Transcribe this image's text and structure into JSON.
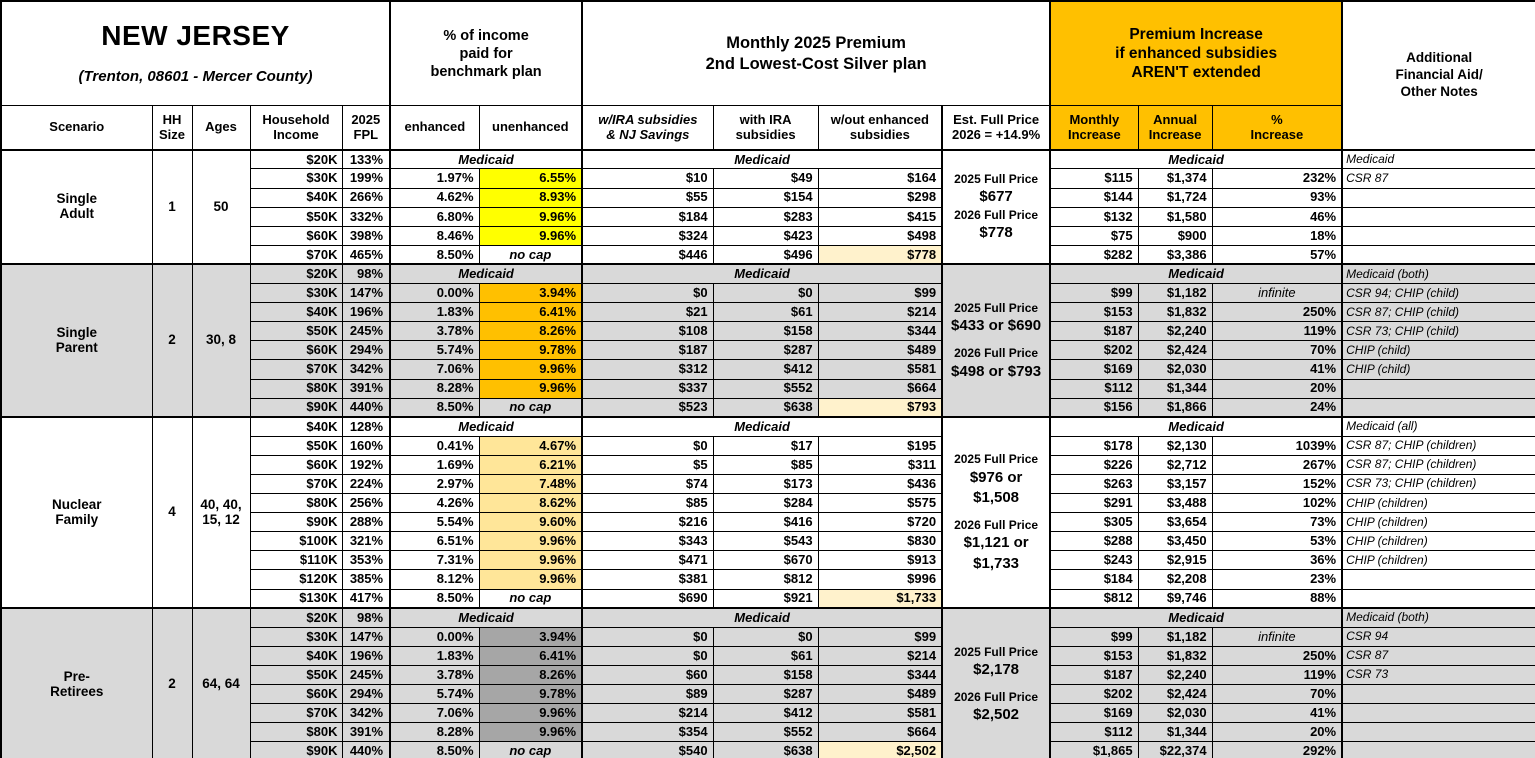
{
  "title": {
    "state": "NEW JERSEY",
    "subtitle": "(Trenton, 08601 - Mercer County)"
  },
  "colors": {
    "header_orange": "#FFC000",
    "band_gray": "#D9D9D9",
    "highlight_yellow": "#FFFF00",
    "highlight_orange": "#FFC000",
    "highlight_gold": "#FFE699",
    "highlight_gray": "#A6A6A6",
    "highlight_cream": "#FFF2CC",
    "border": "#000000"
  },
  "headers": {
    "income_group": "% of income\npaid for\nbenchmark plan",
    "premium_group": "Monthly 2025 Premium\n2nd Lowest-Cost Silver plan",
    "increase_group": "Premium Increase\nif enhanced subsidies\nAREN'T extended",
    "notes": "Additional\nFinancial Aid/\nOther Notes",
    "cols": {
      "scenario": "Scenario",
      "hh_size": "HH\nSize",
      "ages": "Ages",
      "income": "Household\nIncome",
      "fpl": "2025\nFPL",
      "enhanced": "enhanced",
      "unenhanced": "unenhanced",
      "w_ira_nj": "w/IRA subsidies\n& NJ Savings",
      "with_ira": "with IRA\nsubsidies",
      "wout": "w/out enhanced\nsubsidies",
      "full_price": "Est. Full Price\n2026 = +14.9%",
      "monthly": "Monthly\nIncrease",
      "annual": "Annual\nIncrease",
      "pct": "%\nIncrease"
    }
  },
  "chart_data": {
    "type": "table",
    "medicaid_label": "Medicaid",
    "sections": [
      {
        "scenario": "Single\nAdult",
        "hh": "1",
        "ages": "50",
        "band": "white",
        "unenhanced_hl": "#FFFF00",
        "full_price_lines": [
          "2025 Full Price",
          "$677",
          "2026 Full Price",
          "$778"
        ],
        "rows": [
          {
            "inc": "$20K",
            "fpl": "133%",
            "med": true,
            "note": "Medicaid"
          },
          {
            "inc": "$30K",
            "fpl": "199%",
            "enh": "1.97%",
            "une": "6.55%",
            "p1": "$10",
            "p2": "$49",
            "p3": "$164",
            "mo": "$115",
            "an": "$1,374",
            "pc": "232%",
            "note": "CSR 87"
          },
          {
            "inc": "$40K",
            "fpl": "266%",
            "enh": "4.62%",
            "une": "8.93%",
            "p1": "$55",
            "p2": "$154",
            "p3": "$298",
            "mo": "$144",
            "an": "$1,724",
            "pc": "93%",
            "note": ""
          },
          {
            "inc": "$50K",
            "fpl": "332%",
            "enh": "6.80%",
            "une": "9.96%",
            "p1": "$184",
            "p2": "$283",
            "p3": "$415",
            "mo": "$132",
            "an": "$1,580",
            "pc": "46%",
            "note": ""
          },
          {
            "inc": "$60K",
            "fpl": "398%",
            "enh": "8.46%",
            "une": "9.96%",
            "p1": "$324",
            "p2": "$423",
            "p3": "$498",
            "mo": "$75",
            "an": "$900",
            "pc": "18%",
            "note": ""
          },
          {
            "inc": "$70K",
            "fpl": "465%",
            "enh": "8.50%",
            "une": "no cap",
            "nocap": true,
            "p1": "$446",
            "p2": "$496",
            "p3": "$778",
            "hl": true,
            "mo": "$282",
            "an": "$3,386",
            "pc": "57%",
            "note": ""
          }
        ]
      },
      {
        "scenario": "Single\nParent",
        "hh": "2",
        "ages": "30, 8",
        "band": "gray",
        "unenhanced_hl": "#FFC000",
        "full_price_lines": [
          "2025 Full Price",
          "$433 or $690",
          "",
          "2026 Full Price",
          "$498 or $793"
        ],
        "rows": [
          {
            "inc": "$20K",
            "fpl": "98%",
            "med": true,
            "note": "Medicaid (both)"
          },
          {
            "inc": "$30K",
            "fpl": "147%",
            "enh": "0.00%",
            "une": "3.94%",
            "p1": "$0",
            "p2": "$0",
            "p3": "$99",
            "mo": "$99",
            "an": "$1,182",
            "pc": "infinite",
            "note": "CSR 94; CHIP (child)"
          },
          {
            "inc": "$40K",
            "fpl": "196%",
            "enh": "1.83%",
            "une": "6.41%",
            "p1": "$21",
            "p2": "$61",
            "p3": "$214",
            "mo": "$153",
            "an": "$1,832",
            "pc": "250%",
            "note": "CSR 87; CHIP (child)"
          },
          {
            "inc": "$50K",
            "fpl": "245%",
            "enh": "3.78%",
            "une": "8.26%",
            "p1": "$108",
            "p2": "$158",
            "p3": "$344",
            "mo": "$187",
            "an": "$2,240",
            "pc": "119%",
            "note": "CSR 73; CHIP (child)"
          },
          {
            "inc": "$60K",
            "fpl": "294%",
            "enh": "5.74%",
            "une": "9.78%",
            "p1": "$187",
            "p2": "$287",
            "p3": "$489",
            "mo": "$202",
            "an": "$2,424",
            "pc": "70%",
            "note": "CHIP (child)"
          },
          {
            "inc": "$70K",
            "fpl": "342%",
            "enh": "7.06%",
            "une": "9.96%",
            "p1": "$312",
            "p2": "$412",
            "p3": "$581",
            "mo": "$169",
            "an": "$2,030",
            "pc": "41%",
            "note": "CHIP (child)"
          },
          {
            "inc": "$80K",
            "fpl": "391%",
            "enh": "8.28%",
            "une": "9.96%",
            "p1": "$337",
            "p2": "$552",
            "p3": "$664",
            "mo": "$112",
            "an": "$1,344",
            "pc": "20%",
            "note": ""
          },
          {
            "inc": "$90K",
            "fpl": "440%",
            "enh": "8.50%",
            "une": "no cap",
            "nocap": true,
            "p1": "$523",
            "p2": "$638",
            "p3": "$793",
            "hl": true,
            "mo": "$156",
            "an": "$1,866",
            "pc": "24%",
            "note": ""
          }
        ]
      },
      {
        "scenario": "Nuclear\nFamily",
        "hh": "4",
        "ages": "40, 40,\n15, 12",
        "band": "white",
        "unenhanced_hl": "#FFE699",
        "full_price_lines": [
          "2025 Full Price",
          "$976 or",
          "$1,508",
          "",
          "2026 Full Price",
          "$1,121 or",
          "$1,733"
        ],
        "rows": [
          {
            "inc": "$40K",
            "fpl": "128%",
            "med": true,
            "note": "Medicaid (all)"
          },
          {
            "inc": "$50K",
            "fpl": "160%",
            "enh": "0.41%",
            "une": "4.67%",
            "p1": "$0",
            "p2": "$17",
            "p3": "$195",
            "mo": "$178",
            "an": "$2,130",
            "pc": "1039%",
            "note": "CSR 87; CHIP (children)"
          },
          {
            "inc": "$60K",
            "fpl": "192%",
            "enh": "1.69%",
            "une": "6.21%",
            "p1": "$5",
            "p2": "$85",
            "p3": "$311",
            "mo": "$226",
            "an": "$2,712",
            "pc": "267%",
            "note": "CSR 87; CHIP (children)"
          },
          {
            "inc": "$70K",
            "fpl": "224%",
            "enh": "2.97%",
            "une": "7.48%",
            "p1": "$74",
            "p2": "$173",
            "p3": "$436",
            "mo": "$263",
            "an": "$3,157",
            "pc": "152%",
            "note": "CSR 73; CHIP (children)"
          },
          {
            "inc": "$80K",
            "fpl": "256%",
            "enh": "4.26%",
            "une": "8.62%",
            "p1": "$85",
            "p2": "$284",
            "p3": "$575",
            "mo": "$291",
            "an": "$3,488",
            "pc": "102%",
            "note": "CHIP (children)"
          },
          {
            "inc": "$90K",
            "fpl": "288%",
            "enh": "5.54%",
            "une": "9.60%",
            "p1": "$216",
            "p2": "$416",
            "p3": "$720",
            "mo": "$305",
            "an": "$3,654",
            "pc": "73%",
            "note": "CHIP (children)"
          },
          {
            "inc": "$100K",
            "fpl": "321%",
            "enh": "6.51%",
            "une": "9.96%",
            "p1": "$343",
            "p2": "$543",
            "p3": "$830",
            "mo": "$288",
            "an": "$3,450",
            "pc": "53%",
            "note": "CHIP (children)"
          },
          {
            "inc": "$110K",
            "fpl": "353%",
            "enh": "7.31%",
            "une": "9.96%",
            "p1": "$471",
            "p2": "$670",
            "p3": "$913",
            "mo": "$243",
            "an": "$2,915",
            "pc": "36%",
            "note": "CHIP (children)"
          },
          {
            "inc": "$120K",
            "fpl": "385%",
            "enh": "8.12%",
            "une": "9.96%",
            "p1": "$381",
            "p2": "$812",
            "p3": "$996",
            "mo": "$184",
            "an": "$2,208",
            "pc": "23%",
            "note": ""
          },
          {
            "inc": "$130K",
            "fpl": "417%",
            "enh": "8.50%",
            "une": "no cap",
            "nocap": true,
            "p1": "$690",
            "p2": "$921",
            "p3": "$1,733",
            "hl": true,
            "mo": "$812",
            "an": "$9,746",
            "pc": "88%",
            "note": ""
          }
        ]
      },
      {
        "scenario": "Pre-\nRetirees",
        "hh": "2",
        "ages": "64, 64",
        "band": "gray",
        "unenhanced_hl": "#A6A6A6",
        "full_price_lines": [
          "2025 Full Price",
          "$2,178",
          "",
          "2026 Full Price",
          "$2,502"
        ],
        "rows": [
          {
            "inc": "$20K",
            "fpl": "98%",
            "med": true,
            "note": "Medicaid (both)"
          },
          {
            "inc": "$30K",
            "fpl": "147%",
            "enh": "0.00%",
            "une": "3.94%",
            "p1": "$0",
            "p2": "$0",
            "p3": "$99",
            "mo": "$99",
            "an": "$1,182",
            "pc": "infinite",
            "note": "CSR 94"
          },
          {
            "inc": "$40K",
            "fpl": "196%",
            "enh": "1.83%",
            "une": "6.41%",
            "p1": "$0",
            "p2": "$61",
            "p3": "$214",
            "mo": "$153",
            "an": "$1,832",
            "pc": "250%",
            "note": "CSR 87"
          },
          {
            "inc": "$50K",
            "fpl": "245%",
            "enh": "3.78%",
            "une": "8.26%",
            "p1": "$60",
            "p2": "$158",
            "p3": "$344",
            "mo": "$187",
            "an": "$2,240",
            "pc": "119%",
            "note": "CSR 73"
          },
          {
            "inc": "$60K",
            "fpl": "294%",
            "enh": "5.74%",
            "une": "9.78%",
            "p1": "$89",
            "p2": "$287",
            "p3": "$489",
            "mo": "$202",
            "an": "$2,424",
            "pc": "70%",
            "note": ""
          },
          {
            "inc": "$70K",
            "fpl": "342%",
            "enh": "7.06%",
            "une": "9.96%",
            "p1": "$214",
            "p2": "$412",
            "p3": "$581",
            "mo": "$169",
            "an": "$2,030",
            "pc": "41%",
            "note": ""
          },
          {
            "inc": "$80K",
            "fpl": "391%",
            "enh": "8.28%",
            "une": "9.96%",
            "p1": "$354",
            "p2": "$552",
            "p3": "$664",
            "mo": "$112",
            "an": "$1,344",
            "pc": "20%",
            "note": ""
          },
          {
            "inc": "$90K",
            "fpl": "440%",
            "enh": "8.50%",
            "une": "no cap",
            "nocap": true,
            "p1": "$540",
            "p2": "$638",
            "p3": "$2,502",
            "hl": true,
            "mo": "$1,865",
            "an": "$22,374",
            "pc": "292%",
            "note": ""
          }
        ]
      }
    ]
  }
}
